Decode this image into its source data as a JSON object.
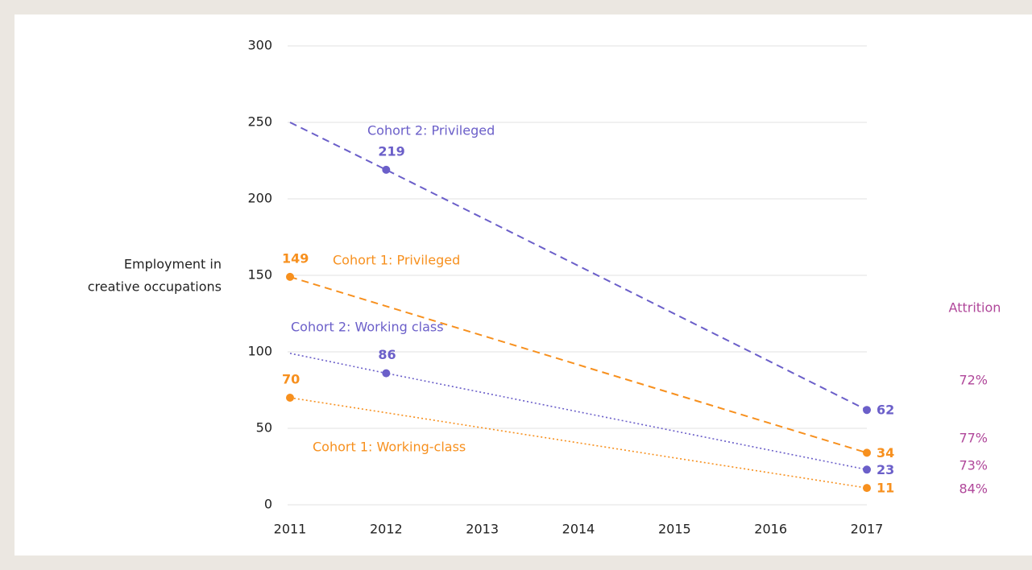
{
  "chart_data": {
    "type": "line",
    "ylabel": [
      "Employment in",
      "creative occupations"
    ],
    "xlim": [
      2011,
      2017
    ],
    "xticks": [
      2011,
      2012,
      2013,
      2014,
      2015,
      2016,
      2017
    ],
    "ylim": [
      0,
      300
    ],
    "yticks": [
      0,
      50,
      100,
      150,
      200,
      250,
      300
    ],
    "grid": true,
    "attrition_title": "Attrition",
    "series": [
      {
        "name": "Cohort 2: Privileged",
        "color": "#6b5fc9",
        "dash": "dashed",
        "x": [
          2011,
          2012,
          2017
        ],
        "values": [
          250,
          219,
          62
        ],
        "value_labels": [
          null,
          "219",
          "62"
        ],
        "attrition": 72,
        "attrition_label": "72%"
      },
      {
        "name": "Cohort 1: Privileged",
        "color": "#f7901e",
        "dash": "dashed",
        "x": [
          2011,
          2017
        ],
        "values": [
          149,
          34
        ],
        "value_labels": [
          "149",
          "34"
        ],
        "attrition": 77,
        "attrition_label": "77%"
      },
      {
        "name": "Cohort 2: Working class",
        "color": "#6b5fc9",
        "dash": "dotted",
        "x": [
          2011,
          2012,
          2017
        ],
        "values": [
          99,
          86,
          23
        ],
        "value_labels": [
          null,
          "86",
          "23"
        ],
        "attrition": 73,
        "attrition_label": "73%"
      },
      {
        "name": "Cohort 1: Working-class",
        "color": "#f7901e",
        "dash": "dotted",
        "x": [
          2011,
          2017
        ],
        "values": [
          70,
          11
        ],
        "value_labels": [
          "70",
          "11"
        ],
        "attrition": 84,
        "attrition_label": "84%"
      }
    ]
  }
}
